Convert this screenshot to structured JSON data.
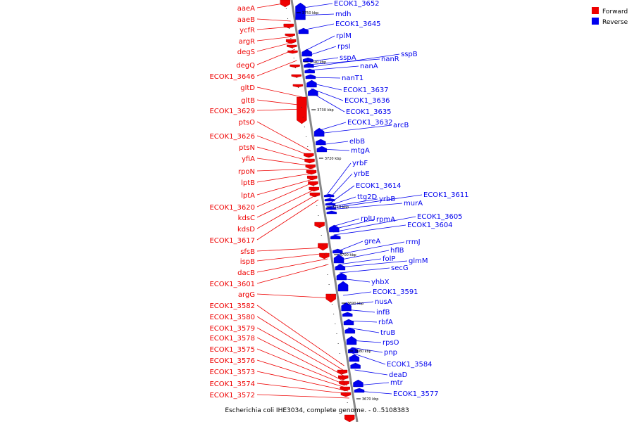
{
  "caption": "Escherichia coli IHE3034, complete genome. - 0..5108383",
  "legend": [
    {
      "label": "Forward",
      "color": "#ee0000"
    },
    {
      "label": "Reverse",
      "color": "#0000ee"
    }
  ],
  "colors": {
    "forward": "#ee0000",
    "reverse": "#0000ee",
    "backbone": "#888888"
  },
  "ticks": [
    "3750 kbp",
    "3740 kbp",
    "3730 kbp",
    "3720 kbp",
    "3710 kbp",
    "3700 kbp",
    "3690 kbp",
    "3680 kbp",
    "3670 kbp"
  ],
  "forward_labels": [
    "aaeA",
    "aaeB",
    "ycfR",
    "argR",
    "degS",
    "degQ",
    "ECOK1_3646",
    "gltD",
    "gltB",
    "ECOK1_3629",
    "ptsO",
    "ECOK1_3626",
    "ptsN",
    "yfiA",
    "rpoN",
    "lptB",
    "lptA",
    "ECOK1_3620",
    "kdsC",
    "kdsD",
    "ECOK1_3617",
    "sfsB",
    "ispB",
    "dacB",
    "ECOK1_3601",
    "argG",
    "ECOK1_3582",
    "ECOK1_3580",
    "ECOK1_3579",
    "ECOK1_3578",
    "ECOK1_3575",
    "ECOK1_3576",
    "ECOK1_3573",
    "ECOK1_3574",
    "ECOK1_3572"
  ],
  "reverse_labels": [
    "ECOK1_3652",
    "mdh",
    "ECOK1_3645",
    "rplM",
    "rpsI",
    "sspA",
    "nanR",
    "sspB",
    "nanA",
    "nanT1",
    "ECOK1_3637",
    "ECOK1_3636",
    "ECOK1_3635",
    "ECOK1_3632",
    "arcB",
    "elbB",
    "mtgA",
    "yrbF",
    "yrbE",
    "ECOK1_3614",
    "ttg2D",
    "yrbB",
    "ECOK1_3611",
    "murA",
    "rplU",
    "rpmA",
    "ECOK1_3605",
    "ECOK1_3604",
    "greA",
    "rrmJ",
    "hflB",
    "folP",
    "glmM",
    "secG",
    "yhbX",
    "ECOK1_3591",
    "nusA",
    "infB",
    "rbfA",
    "truB",
    "rpsO",
    "pnp",
    "ECOK1_3584",
    "deaD",
    "mtr",
    "ECOK1_3577"
  ]
}
